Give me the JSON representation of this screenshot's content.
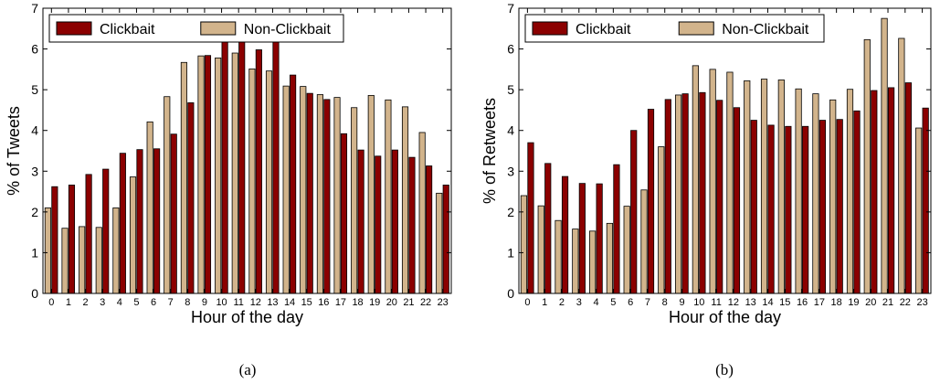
{
  "chart_data": [
    {
      "type": "bar",
      "panel_label": "(a)",
      "xlabel": "Hour of the day",
      "ylabel": "% of Tweets",
      "ylim": [
        0,
        7
      ],
      "yticks": [
        0,
        1,
        2,
        3,
        4,
        5,
        6,
        7
      ],
      "legend_position": "top",
      "grid": false,
      "categories": [
        "0",
        "1",
        "2",
        "3",
        "4",
        "5",
        "6",
        "7",
        "8",
        "9",
        "10",
        "11",
        "12",
        "13",
        "14",
        "15",
        "16",
        "17",
        "18",
        "19",
        "20",
        "21",
        "22",
        "23"
      ],
      "series": [
        {
          "name": "Non-Clickbait",
          "color": "#d2b48c",
          "values": [
            2.1,
            1.6,
            1.64,
            1.62,
            2.1,
            2.86,
            4.21,
            4.83,
            5.67,
            5.83,
            5.78,
            5.9,
            5.51,
            5.46,
            5.09,
            5.08,
            4.88,
            4.81,
            4.56,
            4.86,
            4.75,
            4.58,
            3.95,
            2.46
          ]
        },
        {
          "name": "Clickbait",
          "color": "#8b0000",
          "values": [
            2.62,
            2.66,
            2.92,
            3.05,
            3.44,
            3.53,
            3.55,
            3.91,
            4.68,
            5.84,
            6.2,
            6.19,
            5.98,
            6.18,
            5.36,
            4.91,
            4.76,
            3.92,
            3.52,
            3.37,
            3.52,
            3.34,
            3.13,
            2.66
          ]
        }
      ]
    },
    {
      "type": "bar",
      "panel_label": "(b)",
      "xlabel": "Hour of the day",
      "ylabel": "% of Retweets",
      "ylim": [
        0,
        7
      ],
      "yticks": [
        0,
        1,
        2,
        3,
        4,
        5,
        6,
        7
      ],
      "legend_position": "top",
      "grid": false,
      "categories": [
        "0",
        "1",
        "2",
        "3",
        "4",
        "5",
        "6",
        "7",
        "8",
        "9",
        "10",
        "11",
        "12",
        "13",
        "14",
        "15",
        "16",
        "17",
        "18",
        "19",
        "20",
        "21",
        "22",
        "23"
      ],
      "series": [
        {
          "name": "Non-Clickbait",
          "color": "#d2b48c",
          "values": [
            2.4,
            2.15,
            1.79,
            1.58,
            1.53,
            1.72,
            2.14,
            2.54,
            3.6,
            4.87,
            5.59,
            5.5,
            5.43,
            5.22,
            5.26,
            5.24,
            5.02,
            4.9,
            4.75,
            5.01,
            6.23,
            6.75,
            6.26,
            4.06
          ]
        },
        {
          "name": "Clickbait",
          "color": "#8b0000",
          "values": [
            3.7,
            3.19,
            2.87,
            2.7,
            2.69,
            3.16,
            4.0,
            4.52,
            4.76,
            4.9,
            4.93,
            4.74,
            4.56,
            4.25,
            4.13,
            4.1,
            4.1,
            4.25,
            4.27,
            4.48,
            4.98,
            5.05,
            5.17,
            4.55
          ]
        }
      ]
    }
  ]
}
